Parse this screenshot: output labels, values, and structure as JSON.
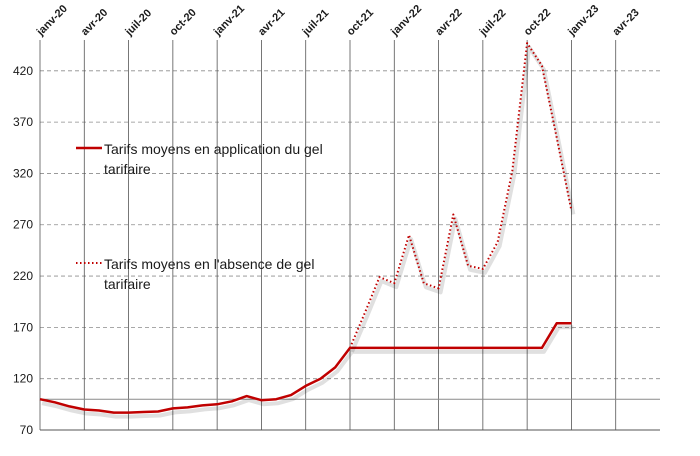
{
  "chart_data": {
    "type": "line",
    "title": "",
    "xlabel": "",
    "ylabel": "",
    "ylim": [
      70,
      450
    ],
    "yticks": [
      70,
      120,
      170,
      220,
      270,
      320,
      370,
      420
    ],
    "xticks": [
      "janv-20",
      "avr-20",
      "juil-20",
      "oct-20",
      "janv-21",
      "avr-21",
      "juil-21",
      "oct-21",
      "janv-22",
      "avr-22",
      "juil-22",
      "oct-22",
      "janv-23",
      "avr-23"
    ],
    "x_start_month": "2020-01",
    "reference_line": 100,
    "grid": {
      "horizontal": "dashed",
      "vertical": "solid"
    },
    "legend": "left, inside plot",
    "series": [
      {
        "name": "Tarifs moyens en application du gel tarifaire",
        "style": "solid",
        "color": "#c00000",
        "x": [
          0,
          1,
          2,
          3,
          4,
          5,
          6,
          7,
          8,
          9,
          10,
          11,
          12,
          13,
          14,
          15,
          16,
          17,
          18,
          19,
          20,
          21,
          22,
          23,
          24,
          25,
          26,
          27,
          28,
          29,
          30,
          31,
          32,
          33,
          34,
          35,
          36
        ],
        "values": [
          100,
          97,
          93,
          90,
          89,
          87,
          87,
          87.5,
          88,
          91,
          92,
          94,
          95,
          98,
          103,
          99,
          100,
          104,
          113,
          120,
          131,
          150,
          150,
          150,
          150,
          150,
          150,
          150,
          150,
          150,
          150,
          150,
          150,
          150,
          150,
          174,
          174
        ]
      },
      {
        "name": "Tarifs moyens en l'absence de gel tarifaire",
        "style": "dotted",
        "color": "#c00000",
        "x": [
          21,
          22,
          23,
          24,
          25,
          26,
          27,
          28,
          29,
          30,
          31,
          32,
          33,
          34,
          35,
          36
        ],
        "values": [
          150,
          184,
          219,
          213,
          260,
          213,
          208,
          280,
          230,
          227,
          253,
          323,
          447,
          425,
          355,
          284
        ]
      }
    ]
  }
}
